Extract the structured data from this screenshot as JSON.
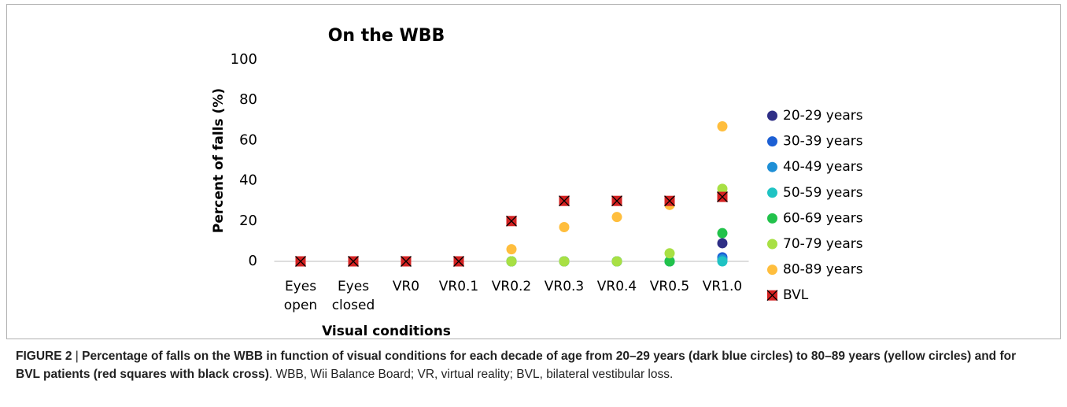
{
  "chart_data": {
    "type": "scatter",
    "title": "On the WBB",
    "x_label": "Visual conditions",
    "y_label": "Percent of falls (%)",
    "categories": [
      "Eyes open",
      "Eyes closed",
      "VR0",
      "VR0.1",
      "VR0.2",
      "VR0.3",
      "VR0.4",
      "VR0.5",
      "VR1.0"
    ],
    "ylim": [
      0,
      100
    ],
    "yticks": [
      0,
      20,
      40,
      60,
      80,
      100
    ],
    "grid": false,
    "legend": "right",
    "series": [
      {
        "name": "20-29 years",
        "color": "#2f2f86",
        "marker": "circle",
        "values": [
          0,
          0,
          0,
          0,
          0,
          0,
          0,
          0,
          9
        ]
      },
      {
        "name": "30-39 years",
        "color": "#1c5fd4",
        "marker": "circle",
        "values": [
          0,
          0,
          0,
          0,
          0,
          0,
          0,
          0,
          2
        ]
      },
      {
        "name": "40-49 years",
        "color": "#1e8fd6",
        "marker": "circle",
        "values": [
          0,
          0,
          0,
          0,
          0,
          0,
          0,
          0,
          1
        ]
      },
      {
        "name": "50-59 years",
        "color": "#1fc3c3",
        "marker": "circle",
        "values": [
          0,
          0,
          0,
          0,
          0,
          0,
          0,
          0,
          0
        ]
      },
      {
        "name": "60-69 years",
        "color": "#22c24b",
        "marker": "circle",
        "values": [
          0,
          0,
          0,
          0,
          0,
          0,
          0,
          0,
          14
        ]
      },
      {
        "name": "70-79 years",
        "color": "#a8e044",
        "marker": "circle",
        "values": [
          0,
          0,
          0,
          0,
          0,
          0,
          0,
          4,
          36
        ]
      },
      {
        "name": "80-89 years",
        "color": "#ffbe3d",
        "marker": "circle",
        "values": [
          0,
          0,
          0,
          0,
          6,
          17,
          22,
          28,
          67
        ]
      },
      {
        "name": "BVL",
        "color": "#d42222",
        "marker": "square",
        "values": [
          0,
          0,
          0,
          0,
          20,
          30,
          30,
          30,
          32
        ]
      }
    ]
  },
  "caption": {
    "label": "FIGURE 2",
    "separator": "|",
    "bold": "Percentage of falls on the WBB in function of visual conditions for each decade of age from 20–29 years (dark blue circles) to 80–89 years (yellow circles) and for BVL patients (red squares with black cross)",
    "text": ". WBB, Wii Balance Board; VR, virtual reality; BVL, bilateral vestibular loss."
  }
}
